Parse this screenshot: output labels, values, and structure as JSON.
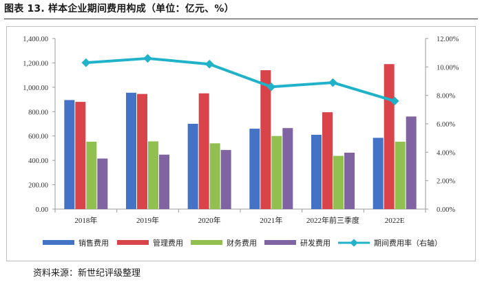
{
  "header": {
    "title": "图表 13. 样本企业期间费用构成（单位：亿元、%）"
  },
  "footer": {
    "source": "资料来源：新世纪评级整理"
  },
  "chart_data": {
    "type": "bar",
    "title": "样本企业期间费用构成（单位：亿元、%）",
    "categories": [
      "2018年",
      "2019年",
      "2020年",
      "2021年",
      "2022年前三季度",
      "2022E"
    ],
    "series": [
      {
        "name": "销售费用",
        "axis": "left",
        "kind": "bar",
        "color": "#4472c4",
        "values": [
          895,
          955,
          700,
          660,
          610,
          585
        ]
      },
      {
        "name": "管理费用",
        "axis": "left",
        "kind": "bar",
        "color": "#d9434a",
        "values": [
          880,
          945,
          950,
          1140,
          795,
          1190
        ]
      },
      {
        "name": "财务费用",
        "axis": "left",
        "kind": "bar",
        "color": "#92c050",
        "values": [
          553,
          556,
          540,
          600,
          437,
          553
        ]
      },
      {
        "name": "研发费用",
        "axis": "left",
        "kind": "bar",
        "color": "#8064a2",
        "values": [
          415,
          447,
          485,
          665,
          463,
          760
        ]
      },
      {
        "name": "期间费用率（右轴）",
        "axis": "right",
        "kind": "line",
        "color": "#1fb2c9",
        "values": [
          10.3,
          10.6,
          10.2,
          8.6,
          8.9,
          7.6
        ]
      }
    ],
    "y_left": {
      "min": 0,
      "max": 1400,
      "ticks": [
        "0.00",
        "200.00",
        "400.00",
        "600.00",
        "800.00",
        "1,000.00",
        "1,200.00",
        "1,400.00"
      ]
    },
    "y_right": {
      "min": 0,
      "max": 12,
      "ticks": [
        "0.00%",
        "2.00%",
        "4.00%",
        "6.00%",
        "8.00%",
        "10.00%",
        "12.00%"
      ]
    },
    "legend_position": "bottom",
    "grid": false
  }
}
